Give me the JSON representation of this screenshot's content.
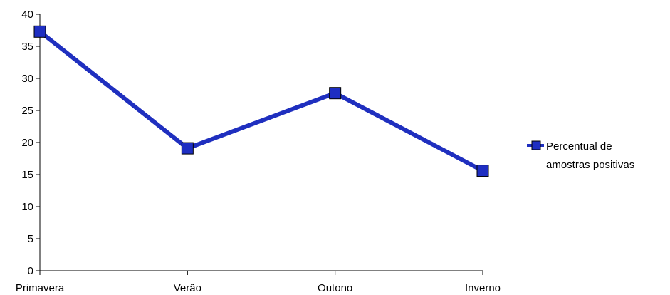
{
  "chart_data": {
    "type": "line",
    "categories": [
      "Primavera",
      "Verão",
      "Outono",
      "Inverno"
    ],
    "series": [
      {
        "name": "Percentual de amostras positivas",
        "values": [
          37.3,
          19.1,
          27.7,
          15.6
        ],
        "color": "#1f2fbf",
        "marker_color": "#1e2ec2"
      }
    ],
    "ylim": [
      0,
      40
    ],
    "yticks": [
      "0",
      "5",
      "10",
      "15",
      "20",
      "25",
      "30",
      "35",
      "40"
    ],
    "grid": false,
    "legend_position": "right",
    "legend_lines": [
      "Percentual de",
      "amostras positivas"
    ]
  }
}
